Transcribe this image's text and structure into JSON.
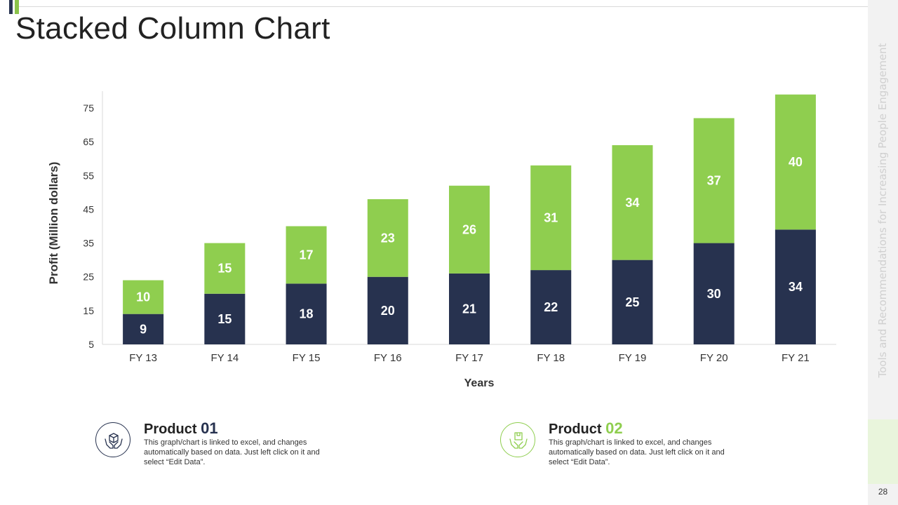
{
  "page": {
    "title": "Stacked Column Chart",
    "side_text": "Tools and Recommendations for Increasing People Engagement",
    "page_number": "28"
  },
  "colors": {
    "navy": "#27324f",
    "green": "#8fce4f",
    "axis_text": "#333333"
  },
  "chart_data": {
    "type": "bar",
    "stacked": true,
    "title": "",
    "xlabel": "Years",
    "ylabel": "Profit  (Million dollars)",
    "categories": [
      "FY 13",
      "FY 14",
      "FY 15",
      "FY 16",
      "FY 17",
      "FY 18",
      "FY 19",
      "FY 20",
      "FY 21"
    ],
    "series": [
      {
        "name": "Product 01",
        "color": "#27324f",
        "values": [
          9,
          15,
          18,
          20,
          21,
          22,
          25,
          30,
          34
        ]
      },
      {
        "name": "Product 02",
        "color": "#8fce4f",
        "values": [
          10,
          15,
          17,
          23,
          26,
          31,
          34,
          37,
          40
        ]
      }
    ],
    "ylim": [
      5,
      75
    ],
    "yticks": [
      5,
      15,
      25,
      35,
      45,
      55,
      65,
      75
    ],
    "grid": false,
    "data_labels": true
  },
  "legend": [
    {
      "label": "Product",
      "num": "01",
      "num_color": "#27324f",
      "icon": "hands-box-icon",
      "desc": "This graph/chart is linked to excel, and changes automatically based on data. Just left click on it and select “Edit Data”."
    },
    {
      "label": "Product",
      "num": "02",
      "num_color": "#8fce4f",
      "icon": "hands-box-icon",
      "desc": "This graph/chart is linked to excel, and changes automatically based on data. Just left click on it and select “Edit Data”."
    }
  ]
}
